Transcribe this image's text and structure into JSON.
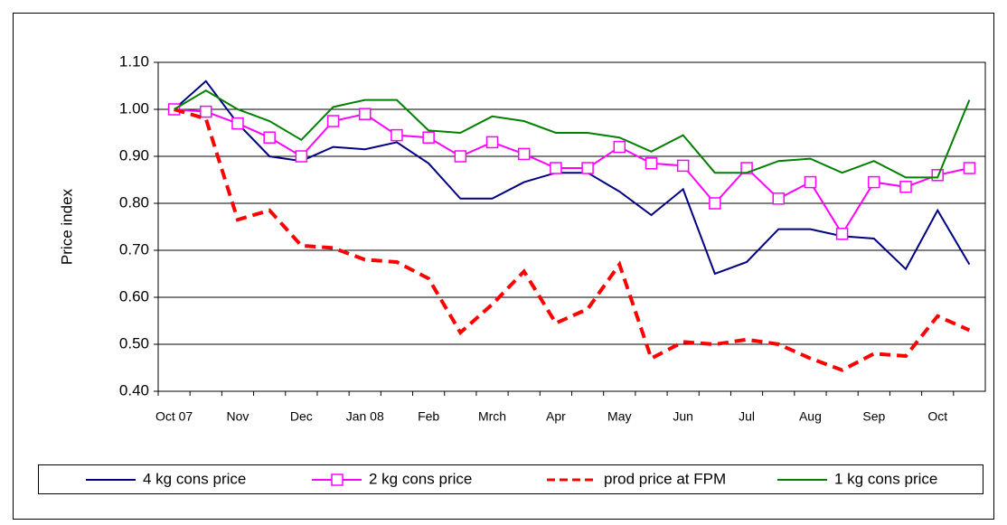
{
  "chart_data": {
    "type": "line",
    "y_label": "Price index",
    "categories": [
      "Oct 07",
      null,
      "Nov",
      null,
      "Dec",
      null,
      "Jan 08",
      null,
      "Feb",
      null,
      "Mrch",
      null,
      "Apr",
      null,
      "May",
      null,
      "Jun",
      null,
      "Jul",
      null,
      "Aug",
      null,
      "Sep",
      null,
      "Oct",
      null
    ],
    "series": [
      {
        "name": "4 kg cons price",
        "color": "#000080",
        "values": [
          1.0,
          1.06,
          0.97,
          0.9,
          0.89,
          0.92,
          0.915,
          0.93,
          0.885,
          0.81,
          0.81,
          0.845,
          0.865,
          0.865,
          0.825,
          0.775,
          0.83,
          0.65,
          0.675,
          0.745,
          0.745,
          0.73,
          0.725,
          0.66,
          0.785,
          0.67
        ]
      },
      {
        "name": "2 kg cons price",
        "color": "#ff00ff",
        "marker": "square",
        "values": [
          1.0,
          0.995,
          0.97,
          0.94,
          0.9,
          0.975,
          0.99,
          0.945,
          0.94,
          0.9,
          0.93,
          0.905,
          0.875,
          0.875,
          0.92,
          0.885,
          0.88,
          0.8,
          0.875,
          0.81,
          0.845,
          0.735,
          0.845,
          0.835,
          0.86,
          0.875
        ]
      },
      {
        "name": "prod price at FPM",
        "color": "#ff0000",
        "dashed": true,
        "values": [
          1.0,
          0.98,
          0.765,
          0.785,
          0.71,
          0.705,
          0.68,
          0.675,
          0.64,
          0.525,
          0.585,
          0.655,
          0.545,
          0.575,
          0.67,
          0.47,
          0.505,
          0.5,
          0.51,
          0.5,
          0.47,
          0.445,
          0.48,
          0.475,
          0.56,
          0.53
        ]
      },
      {
        "name": "1 kg cons price",
        "color": "#008000",
        "values": [
          1.0,
          1.04,
          1.0,
          0.975,
          0.935,
          1.005,
          1.02,
          1.02,
          0.955,
          0.95,
          0.985,
          0.975,
          0.95,
          0.95,
          0.94,
          0.91,
          0.945,
          0.865,
          0.865,
          0.89,
          0.895,
          0.865,
          0.89,
          0.855,
          0.855,
          1.02
        ]
      }
    ],
    "ylim": [
      0.4,
      1.1
    ],
    "yticks": [
      {
        "value": 0.4,
        "label": "0.40"
      },
      {
        "value": 0.5,
        "label": "0.50"
      },
      {
        "value": 0.6,
        "label": "0.60"
      },
      {
        "value": 0.7,
        "label": "0.70"
      },
      {
        "value": 0.8,
        "label": "0.80"
      },
      {
        "value": 0.9,
        "label": "0.90"
      },
      {
        "value": 1.0,
        "label": "1.00"
      },
      {
        "value": 1.1,
        "label": "1.10"
      }
    ],
    "grid": true,
    "legend": "bottom"
  }
}
